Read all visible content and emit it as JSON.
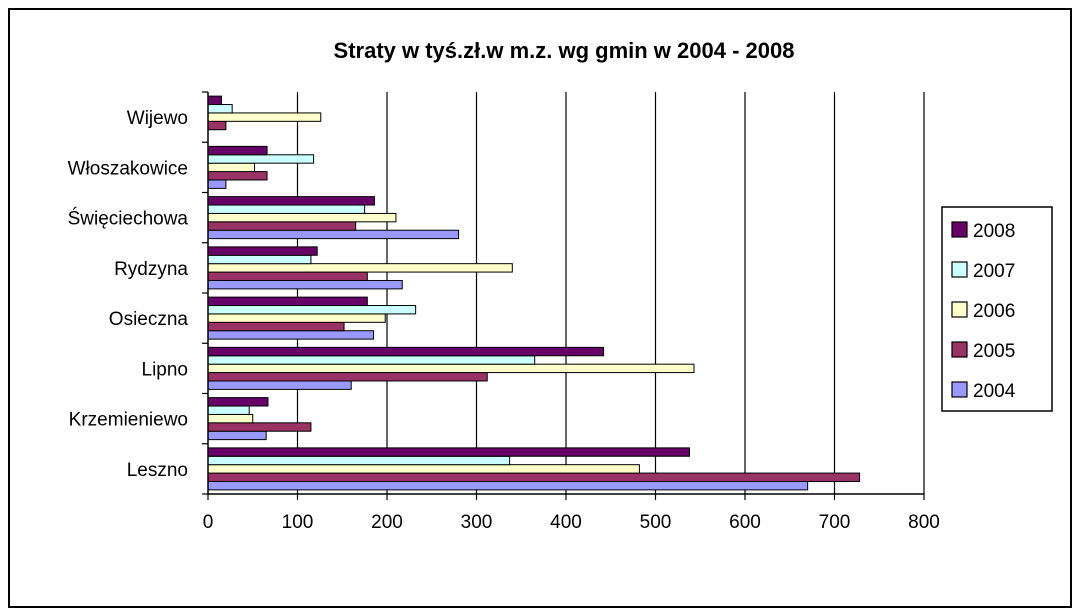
{
  "chart_data": {
    "type": "bar",
    "orientation": "horizontal",
    "title": "Straty w tyś.zł.w m.z. wg gmin w 2004 - 2008",
    "categories": [
      "Leszno",
      "Krzemieniewo",
      "Lipno",
      "Osieczna",
      "Rydzyna",
      "Święciechowa",
      "Włoszakowice",
      "Wijewo"
    ],
    "series": [
      {
        "name": "2004",
        "color": "#9999FF",
        "values": [
          670,
          65,
          160,
          185,
          217,
          280,
          20,
          0
        ]
      },
      {
        "name": "2005",
        "color": "#993366",
        "values": [
          728,
          115,
          312,
          152,
          178,
          165,
          66,
          20
        ]
      },
      {
        "name": "2006",
        "color": "#FFFFCC",
        "values": [
          482,
          50,
          543,
          198,
          340,
          210,
          52,
          126
        ]
      },
      {
        "name": "2007",
        "color": "#CCFFFF",
        "values": [
          337,
          46,
          365,
          232,
          115,
          175,
          118,
          27
        ]
      },
      {
        "name": "2008",
        "color": "#660066",
        "values": [
          538,
          67,
          442,
          178,
          122,
          186,
          66,
          15
        ]
      }
    ],
    "xlim": [
      0,
      800
    ],
    "xticks": [
      0,
      100,
      200,
      300,
      400,
      500,
      600,
      700,
      800
    ],
    "grid": "vertical major gridlines",
    "legend_position": "right",
    "legend_order": [
      "2008",
      "2007",
      "2006",
      "2005",
      "2004"
    ]
  }
}
